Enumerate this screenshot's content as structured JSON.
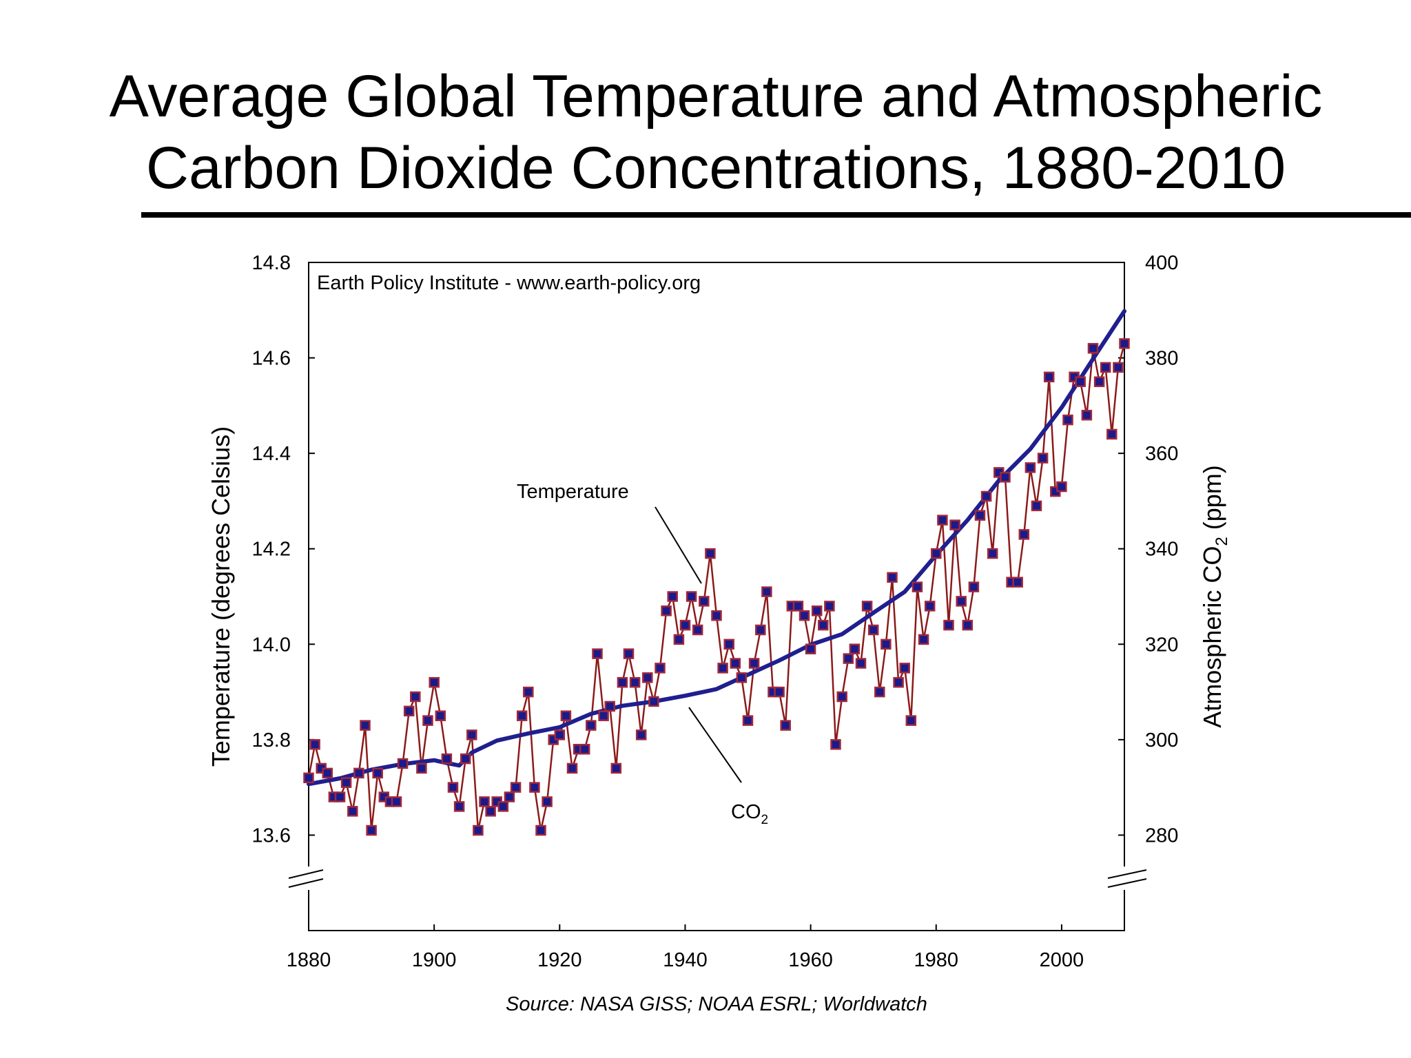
{
  "title": {
    "line1": "Average Global Temperature and Atmospheric",
    "line2": "Carbon Dioxide Concentrations, 1880-2010"
  },
  "chart_data": {
    "type": "line",
    "watermark": "Earth Policy Institute - www.earth-policy.org",
    "source": "Source: NASA GISS; NOAA ESRL; Worldwatch",
    "x_axis": {
      "range": [
        1880,
        2010
      ],
      "ticks": [
        1880,
        1900,
        1920,
        1940,
        1960,
        1980,
        2000
      ],
      "tick_labels": [
        "1880",
        "1900",
        "1920",
        "1940",
        "1960",
        "1980",
        "2000"
      ]
    },
    "y_left": {
      "label": "Temperature (degrees Celsius)",
      "range": [
        13.4,
        14.8
      ],
      "ticks": [
        13.6,
        13.8,
        14.0,
        14.2,
        14.4,
        14.6,
        14.8
      ],
      "tick_labels": [
        "13.6",
        "13.8",
        "14.0",
        "14.2",
        "14.4",
        "14.6",
        "14.8"
      ],
      "axis_break": true
    },
    "y_right": {
      "label_main": "Atmospheric CO",
      "label_sub": "2",
      "label_tail": " (ppm)",
      "range": [
        260,
        400
      ],
      "ticks": [
        280,
        300,
        320,
        340,
        360,
        380,
        400
      ],
      "tick_labels": [
        "280",
        "300",
        "320",
        "340",
        "360",
        "380",
        "400"
      ],
      "axis_break": true
    },
    "annotations": {
      "temperature": "Temperature",
      "co2_main": "CO",
      "co2_sub": "2"
    },
    "colors": {
      "temperature_line": "#8b1a1a",
      "temperature_marker_fill": "#1a1a8c",
      "temperature_marker_edge": "#a0283c",
      "co2_line": "#1f1f8f"
    },
    "series": [
      {
        "name": "Temperature",
        "axis": "left",
        "x": [
          1880,
          1881,
          1882,
          1883,
          1884,
          1885,
          1886,
          1887,
          1888,
          1889,
          1890,
          1891,
          1892,
          1893,
          1894,
          1895,
          1896,
          1897,
          1898,
          1899,
          1900,
          1901,
          1902,
          1903,
          1904,
          1905,
          1906,
          1907,
          1908,
          1909,
          1910,
          1911,
          1912,
          1913,
          1914,
          1915,
          1916,
          1917,
          1918,
          1919,
          1920,
          1921,
          1922,
          1923,
          1924,
          1925,
          1926,
          1927,
          1928,
          1929,
          1930,
          1931,
          1932,
          1933,
          1934,
          1935,
          1936,
          1937,
          1938,
          1939,
          1940,
          1941,
          1942,
          1943,
          1944,
          1945,
          1946,
          1947,
          1948,
          1949,
          1950,
          1951,
          1952,
          1953,
          1954,
          1955,
          1956,
          1957,
          1958,
          1959,
          1960,
          1961,
          1962,
          1963,
          1964,
          1965,
          1966,
          1967,
          1968,
          1969,
          1970,
          1971,
          1972,
          1973,
          1974,
          1975,
          1976,
          1977,
          1978,
          1979,
          1980,
          1981,
          1982,
          1983,
          1984,
          1985,
          1986,
          1987,
          1988,
          1989,
          1990,
          1991,
          1992,
          1993,
          1994,
          1995,
          1996,
          1997,
          1998,
          1999,
          2000,
          2001,
          2002,
          2003,
          2004,
          2005,
          2006,
          2007,
          2008,
          2009,
          2010
        ],
        "values": [
          13.72,
          13.79,
          13.74,
          13.73,
          13.68,
          13.68,
          13.71,
          13.65,
          13.73,
          13.83,
          13.61,
          13.73,
          13.68,
          13.67,
          13.67,
          13.75,
          13.86,
          13.89,
          13.74,
          13.84,
          13.92,
          13.85,
          13.76,
          13.7,
          13.66,
          13.76,
          13.81,
          13.61,
          13.67,
          13.65,
          13.67,
          13.66,
          13.68,
          13.7,
          13.85,
          13.9,
          13.7,
          13.61,
          13.67,
          13.8,
          13.81,
          13.85,
          13.74,
          13.78,
          13.78,
          13.83,
          13.98,
          13.85,
          13.87,
          13.74,
          13.92,
          13.98,
          13.92,
          13.81,
          13.93,
          13.88,
          13.95,
          14.07,
          14.1,
          14.01,
          14.04,
          14.1,
          14.03,
          14.09,
          14.19,
          14.06,
          13.95,
          14.0,
          13.96,
          13.93,
          13.84,
          13.96,
          14.03,
          14.11,
          13.9,
          13.9,
          13.83,
          14.08,
          14.08,
          14.06,
          13.99,
          14.07,
          14.04,
          14.08,
          13.79,
          13.89,
          13.97,
          13.99,
          13.96,
          14.08,
          14.03,
          13.9,
          14.0,
          14.14,
          13.92,
          13.95,
          13.84,
          14.12,
          14.01,
          14.08,
          14.19,
          14.26,
          14.04,
          14.25,
          14.09,
          14.04,
          14.12,
          14.27,
          14.31,
          14.19,
          14.36,
          14.35,
          14.13,
          14.13,
          14.23,
          14.37,
          14.29,
          14.39,
          14.56,
          14.32,
          14.33,
          14.47,
          14.56,
          14.55,
          14.48,
          14.62,
          14.55,
          14.58,
          14.44,
          14.58,
          14.63
        ]
      },
      {
        "name": "CO2",
        "axis": "right",
        "x": [
          1880,
          1885,
          1890,
          1895,
          1900,
          1902,
          1904,
          1906,
          1910,
          1915,
          1920,
          1925,
          1930,
          1935,
          1940,
          1945,
          1950,
          1955,
          1960,
          1965,
          1970,
          1975,
          1980,
          1985,
          1990,
          1995,
          2000,
          2005,
          2010
        ],
        "values": [
          290.7,
          291.9,
          293.7,
          294.9,
          295.7,
          295.1,
          294.6,
          297.3,
          299.8,
          301.3,
          302.6,
          305.4,
          307.1,
          308.0,
          309.2,
          310.6,
          313.6,
          316.6,
          319.9,
          322.1,
          326.6,
          331.0,
          338.7,
          346.0,
          354.3,
          360.9,
          369.6,
          379.8,
          389.8
        ]
      }
    ]
  }
}
